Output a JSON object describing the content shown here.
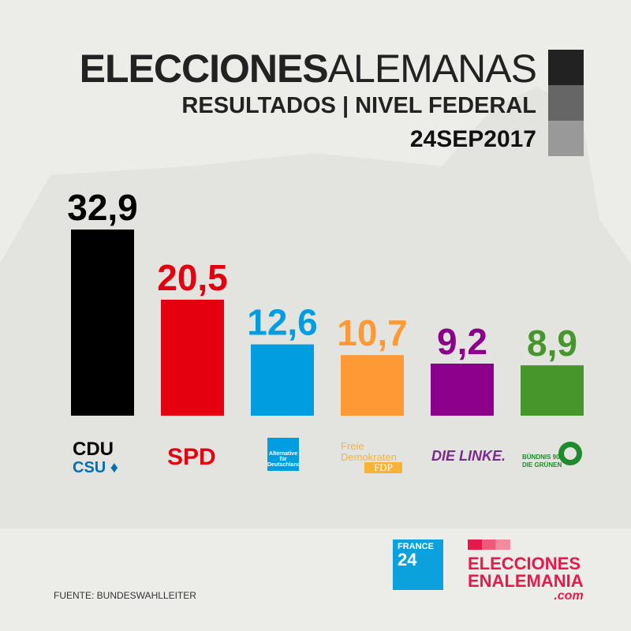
{
  "header": {
    "title_bold": "ELECCIONES",
    "title_regular": "ALEMANAS",
    "subtitle": "RESULTADOS | NIVEL FEDERAL",
    "date": "24SEP2017"
  },
  "chart_data": {
    "type": "bar",
    "title": "ELECCIONES ALEMANAS - RESULTADOS | NIVEL FEDERAL",
    "categories": [
      "CDU/CSU",
      "SPD",
      "AfD",
      "FDP",
      "DIE LINKE",
      "BÜNDNIS 90/DIE GRÜNEN"
    ],
    "values": [
      32.9,
      20.5,
      12.6,
      10.7,
      9.2,
      8.9
    ],
    "value_labels": [
      "32,9",
      "20,5",
      "12,6",
      "10,7",
      "9,2",
      "8,9"
    ],
    "colors": [
      "#000000",
      "#e3000f",
      "#009ee0",
      "#ff9933",
      "#8b008b",
      "#46962b"
    ],
    "xlabel": "",
    "ylabel": "%",
    "ylim": [
      0,
      32.9
    ]
  },
  "logos": {
    "cdu": "CDU",
    "csu": "CSU",
    "spd": "SPD",
    "afd": "Alternative für Deutschland",
    "fdp_top": "Freie",
    "fdp_mid": "Demokraten",
    "fdp_box": "FDP",
    "linke": "DIE LINKE.",
    "gruene_1": "BÜNDNIS 90",
    "gruene_2": "DIE GRÜNEN"
  },
  "footer": {
    "source": "FUENTE: BUNDESWAHLLEITER",
    "france24_1": "FRANCE",
    "france24_2": "24",
    "een_1": "ELECCIONES",
    "een_2": "ENALEMANIA",
    "een_3": ".com"
  }
}
